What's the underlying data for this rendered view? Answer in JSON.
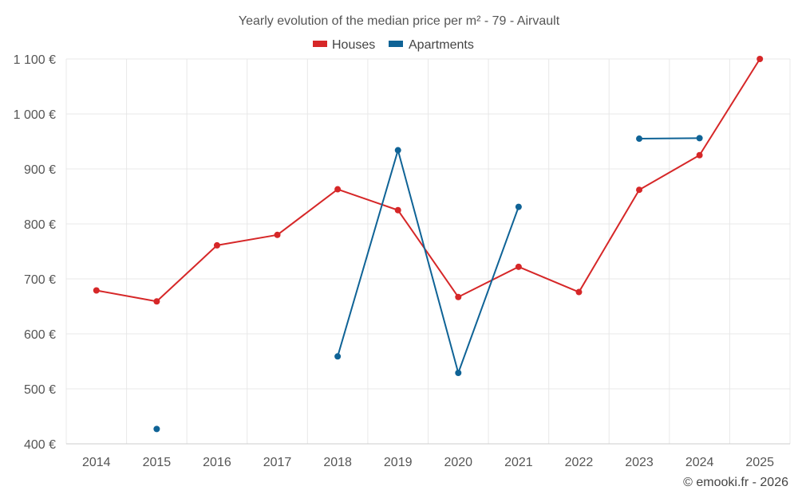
{
  "chart_data": {
    "type": "line",
    "title": "Yearly evolution of the median price per m² - 79 - Airvault",
    "categories": [
      "2014",
      "2015",
      "2016",
      "2017",
      "2018",
      "2019",
      "2020",
      "2021",
      "2022",
      "2023",
      "2024",
      "2025"
    ],
    "y_ticks": [
      "400 €",
      "500 €",
      "600 €",
      "700 €",
      "800 €",
      "900 €",
      "1 000 €",
      "1 100 €"
    ],
    "ylim": [
      400,
      1100
    ],
    "y_tick_values": [
      400,
      500,
      600,
      700,
      800,
      900,
      1000,
      1100
    ],
    "xlabel": "",
    "ylabel": "",
    "grid": true,
    "legend_position": "top-center",
    "series": [
      {
        "name": "Houses",
        "color": "#d62728",
        "values": [
          679,
          659,
          761,
          780,
          863,
          825,
          667,
          722,
          676,
          862,
          925,
          1100
        ]
      },
      {
        "name": "Apartments",
        "color": "#0f6396",
        "values": [
          null,
          427,
          null,
          null,
          559,
          934,
          529,
          831,
          null,
          955,
          956,
          null
        ]
      }
    ]
  },
  "credit": "© emooki.fr - 2026"
}
